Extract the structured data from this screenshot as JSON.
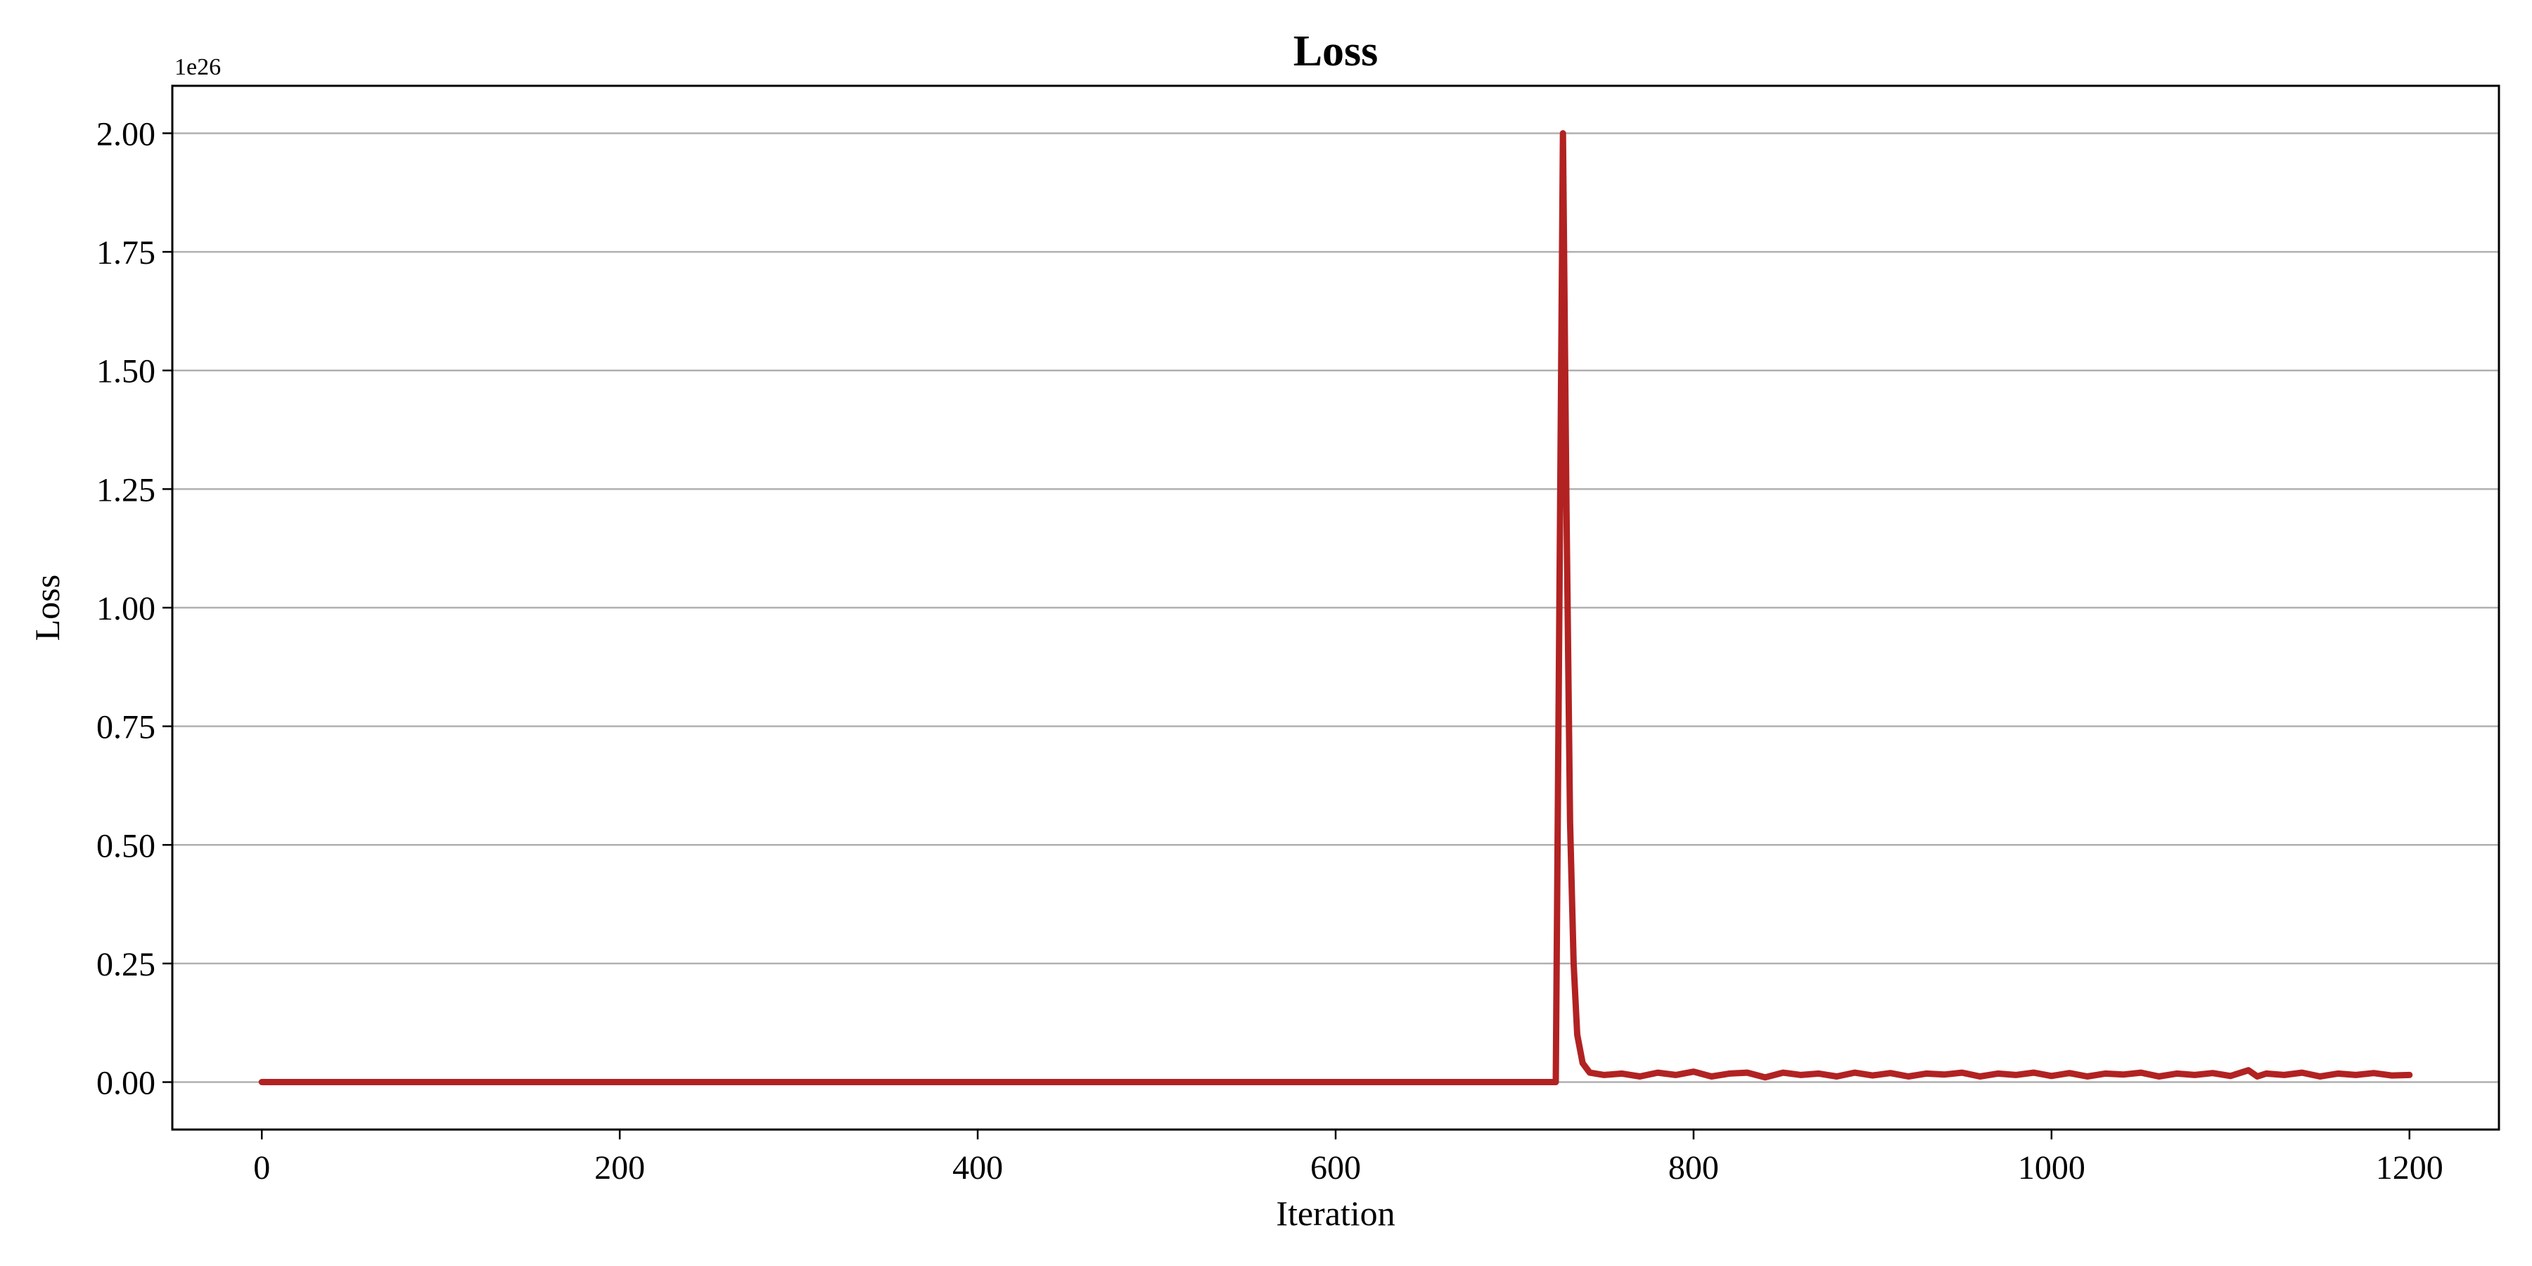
{
  "chart_data": {
    "type": "line",
    "title": "Loss",
    "xlabel": "Iteration",
    "ylabel": "Loss",
    "y_offset_label": "1e26",
    "xlim": [
      -50,
      1250
    ],
    "ylim": [
      -0.1,
      2.1
    ],
    "y_scale_factor": 1e+26,
    "x_ticks": [
      0,
      200,
      400,
      600,
      800,
      1000,
      1200
    ],
    "x_tick_labels": [
      "0",
      "200",
      "400",
      "600",
      "800",
      "1000",
      "1200"
    ],
    "y_ticks": [
      0.0,
      0.25,
      0.5,
      0.75,
      1.0,
      1.25,
      1.5,
      1.75,
      2.0
    ],
    "y_tick_labels": [
      "0.00",
      "0.25",
      "0.50",
      "0.75",
      "1.00",
      "1.25",
      "1.50",
      "1.75",
      "2.00"
    ],
    "grid": "horizontal",
    "legend": "none",
    "line_color": "#b22222",
    "series": [
      {
        "points": [
          [
            0,
            0.0
          ],
          [
            100,
            0.0
          ],
          [
            200,
            0.0
          ],
          [
            300,
            0.0
          ],
          [
            400,
            0.0
          ],
          [
            500,
            0.0
          ],
          [
            600,
            0.0
          ],
          [
            700,
            0.0
          ],
          [
            723,
            0.0
          ],
          [
            725,
            1.0
          ],
          [
            727,
            2.0
          ],
          [
            729,
            1.2
          ],
          [
            731,
            0.55
          ],
          [
            733,
            0.25
          ],
          [
            735,
            0.1
          ],
          [
            738,
            0.04
          ],
          [
            742,
            0.02
          ],
          [
            750,
            0.015
          ],
          [
            760,
            0.018
          ],
          [
            770,
            0.012
          ],
          [
            780,
            0.02
          ],
          [
            790,
            0.015
          ],
          [
            800,
            0.022
          ],
          [
            810,
            0.012
          ],
          [
            820,
            0.018
          ],
          [
            830,
            0.02
          ],
          [
            840,
            0.01
          ],
          [
            850,
            0.02
          ],
          [
            860,
            0.015
          ],
          [
            870,
            0.018
          ],
          [
            880,
            0.012
          ],
          [
            890,
            0.02
          ],
          [
            900,
            0.014
          ],
          [
            910,
            0.019
          ],
          [
            920,
            0.012
          ],
          [
            930,
            0.018
          ],
          [
            940,
            0.016
          ],
          [
            950,
            0.02
          ],
          [
            960,
            0.012
          ],
          [
            970,
            0.018
          ],
          [
            980,
            0.015
          ],
          [
            990,
            0.02
          ],
          [
            1000,
            0.013
          ],
          [
            1010,
            0.019
          ],
          [
            1020,
            0.012
          ],
          [
            1030,
            0.018
          ],
          [
            1040,
            0.016
          ],
          [
            1050,
            0.02
          ],
          [
            1060,
            0.012
          ],
          [
            1070,
            0.018
          ],
          [
            1080,
            0.015
          ],
          [
            1090,
            0.019
          ],
          [
            1100,
            0.013
          ],
          [
            1110,
            0.025
          ],
          [
            1115,
            0.012
          ],
          [
            1120,
            0.018
          ],
          [
            1130,
            0.015
          ],
          [
            1140,
            0.02
          ],
          [
            1150,
            0.012
          ],
          [
            1160,
            0.018
          ],
          [
            1170,
            0.015
          ],
          [
            1180,
            0.019
          ],
          [
            1190,
            0.014
          ],
          [
            1200,
            0.015
          ]
        ]
      }
    ]
  }
}
